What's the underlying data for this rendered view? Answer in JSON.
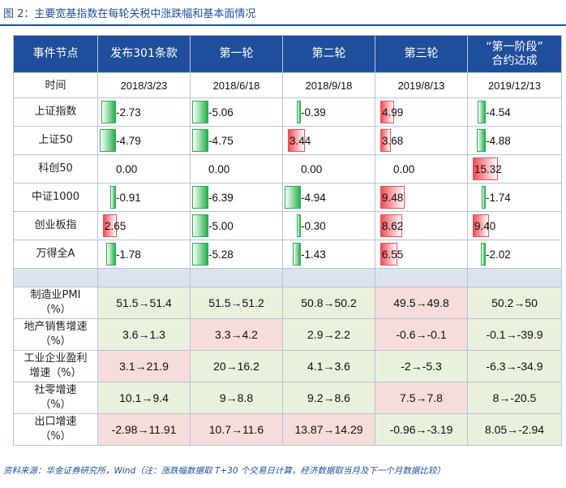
{
  "title": "图 2：主要宽基指数在每轮关税中涨跌幅和基本面情况",
  "headers": [
    "事件节点",
    "发布301条款",
    "第一轮",
    "第二轮",
    "第三轮",
    "“第一阶段”合约达成"
  ],
  "header_last_lines": [
    "“第一阶段”",
    "合约达成"
  ],
  "time_label": "时间",
  "dates": [
    "2018/3/23",
    "2018/6/18",
    "2018/9/18",
    "2019/8/13",
    "2019/12/13"
  ],
  "index_rows": [
    {
      "label": "上证指数",
      "values": [
        "-2.73",
        "-5.06",
        "-0.39",
        "4.99",
        "-4.54"
      ]
    },
    {
      "label": "上证50",
      "values": [
        "-4.79",
        "-4.75",
        "3.44",
        "3.68",
        "-4.88"
      ]
    },
    {
      "label": "科创50",
      "values": [
        "0.00",
        "0.00",
        "0.00",
        "0.00",
        "15.32"
      ]
    },
    {
      "label": "中证1000",
      "values": [
        "-0.91",
        "-6.39",
        "-4.94",
        "9.48",
        "-1.74"
      ]
    },
    {
      "label": "创业板指",
      "values": [
        "2.65",
        "-5.00",
        "-0.30",
        "8.62",
        "9.40"
      ]
    },
    {
      "label": "万得全A",
      "values": [
        "-1.78",
        "-5.28",
        "-1.43",
        "6.55",
        "-2.02"
      ]
    }
  ],
  "bar_colors": {
    "positive": "#f14d55",
    "negative": "#27b14d"
  },
  "eco_rows": [
    {
      "label_lines": [
        "制造业PMI",
        "（%）"
      ],
      "values": [
        "51.5→51.4",
        "51.5→51.2",
        "50.8→50.2",
        "49.5→49.8",
        "50.2→50"
      ],
      "colors": [
        "green",
        "green",
        "green",
        "pink",
        "green"
      ]
    },
    {
      "label_lines": [
        "地产销售增速",
        "（%）"
      ],
      "values": [
        "3.6→1.3",
        "3.3→4.2",
        "2.9→2.2",
        "-0.6→-0.1",
        "-0.1→-39.9"
      ],
      "colors": [
        "green",
        "pink",
        "green",
        "pink",
        "green"
      ]
    },
    {
      "label_lines": [
        "工业企业盈利",
        "增速（%）"
      ],
      "values": [
        "3.1→21.9",
        "20→16.2",
        "4.1→3.6",
        "-2→-5.3",
        "-6.3→-34.9"
      ],
      "colors": [
        "pink",
        "green",
        "green",
        "green",
        "green"
      ]
    },
    {
      "label_lines": [
        "社零增速",
        "（%）"
      ],
      "values": [
        "10.1→9.4",
        "9→8.8",
        "9.2→8.6",
        "7.5→7.8",
        "8→-20.5"
      ],
      "colors": [
        "green",
        "green",
        "green",
        "pink",
        "green"
      ]
    },
    {
      "label_lines": [
        "出口增速",
        "（%）"
      ],
      "values": [
        "-2.98→11.91",
        "10.7→11.6",
        "13.87→14.29",
        "-0.96→-3.19",
        "8.05→-2.94"
      ],
      "colors": [
        "pink",
        "pink",
        "pink",
        "green",
        "green"
      ]
    }
  ],
  "eco_colors": {
    "green": "#e9f0dc",
    "pink": "#f6dcdc"
  },
  "source": "资料来源：华金证券研究所，Wind（注：涨跌幅数据取 T+30 个交易日计算，经济数据取当月及下一个月数据比较）"
}
